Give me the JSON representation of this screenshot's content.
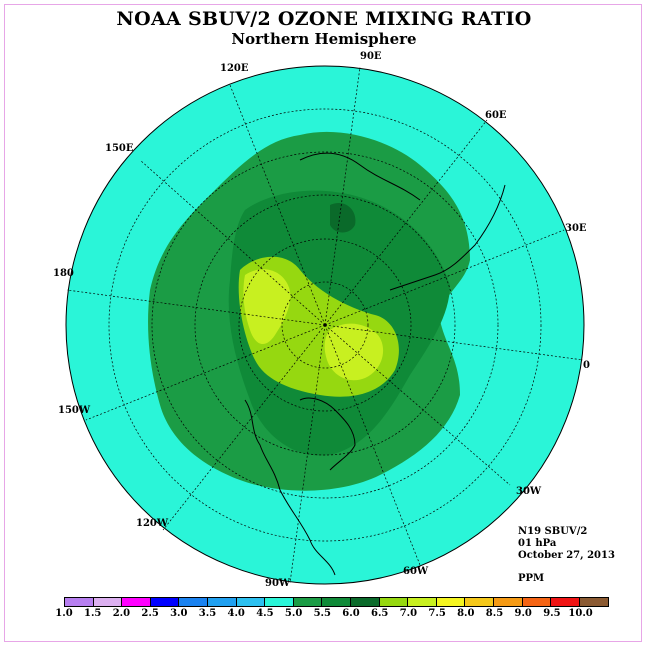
{
  "title": "NOAA SBUV/2 OZONE MIXING RATIO",
  "subtitle": "Northern Hemisphere",
  "info": {
    "satellite": "N19 SBUV/2",
    "level": "01 hPa",
    "date": "October 27, 2013",
    "units": "PPM"
  },
  "longitude_labels": {
    "l90e": "90E",
    "l60e": "60E",
    "l30e": "30E",
    "l0": "0",
    "l30w": "30W",
    "l60w": "60W",
    "l90w": "90W",
    "l120w": "120W",
    "l150w": "150W",
    "l180": "180",
    "l150e": "150E",
    "l120e": "120E"
  },
  "colorbar": {
    "ticks": [
      "1.0",
      "1.5",
      "2.0",
      "2.5",
      "3.0",
      "3.5",
      "4.0",
      "4.5",
      "5.0",
      "5.5",
      "6.0",
      "6.5",
      "7.0",
      "7.5",
      "8.0",
      "8.5",
      "9.0",
      "9.5",
      "10.0"
    ],
    "colors": [
      "#b77ff0",
      "#dcb0f0",
      "#ff00ff",
      "#0000ff",
      "#1a82f0",
      "#20a0f0",
      "#2cc0f0",
      "#2af5d8",
      "#1b9c45",
      "#0f8a38",
      "#0a6a2a",
      "#96d810",
      "#c8f020",
      "#f5f520",
      "#f5c81a",
      "#f59a14",
      "#f56414",
      "#f01414",
      "#8b5a32"
    ]
  },
  "map_colors": {
    "ocean_level": "#2af5d8",
    "band_5_5": "#1b9c45",
    "band_6_0": "#0f8a38",
    "band_6_5": "#96d810",
    "band_7_0": "#c8f020"
  }
}
